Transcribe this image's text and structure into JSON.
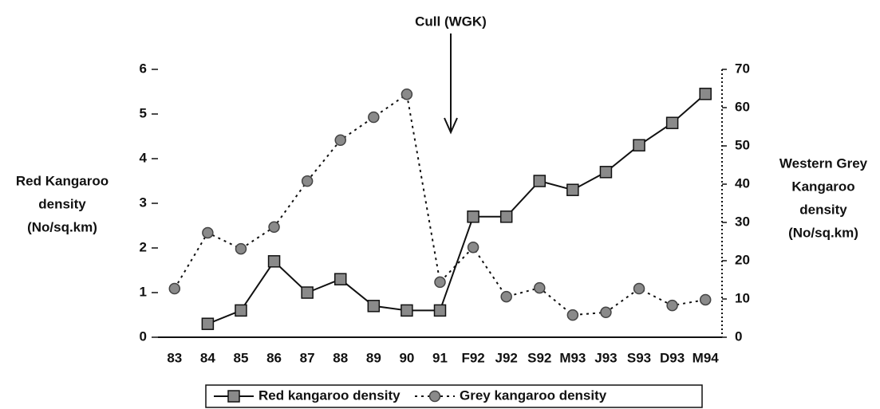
{
  "chart_data": {
    "type": "line",
    "annotation": "Cull (WGK)",
    "ylabel": [
      "Red Kangaroo",
      "density",
      "(No/sq.km)"
    ],
    "y2label": [
      "Western Grey",
      "Kangaroo",
      "density",
      "(No/sq.km)"
    ],
    "categories": [
      "83",
      "84",
      "85",
      "86",
      "87",
      "88",
      "89",
      "90",
      "91",
      "F92",
      "J92",
      "S92",
      "M93",
      "J93",
      "S93",
      "D93",
      "M94"
    ],
    "ylim": [
      0,
      6
    ],
    "yticks": [
      0,
      1,
      2,
      3,
      4,
      5,
      6
    ],
    "y2lim": [
      0,
      70
    ],
    "y2ticks": [
      0,
      10,
      20,
      30,
      40,
      50,
      60,
      70
    ],
    "legend": "bottom",
    "series": [
      {
        "name": "Red kangaroo density",
        "color": "#111111",
        "marker_color": "#8a8a8a",
        "marker": "square",
        "dash": "solid",
        "values": [
          null,
          0.3,
          0.6,
          1.7,
          1.0,
          1.3,
          0.7,
          0.6,
          0.6,
          2.7,
          2.7,
          3.5,
          3.3,
          3.7,
          4.3,
          4.8,
          5.45
        ]
      },
      {
        "name": "Grey kangaroo density",
        "color": "#111111",
        "marker_color": "#8a8a8a",
        "marker": "circle",
        "dash": "dotted",
        "axis": "y2",
        "values": [
          12.7,
          27.3,
          23.1,
          28.8,
          40.8,
          51.5,
          57.5,
          63.5,
          14.4,
          23.5,
          10.6,
          12.9,
          5.8,
          6.5,
          12.7,
          8.3,
          9.8
        ]
      }
    ]
  }
}
